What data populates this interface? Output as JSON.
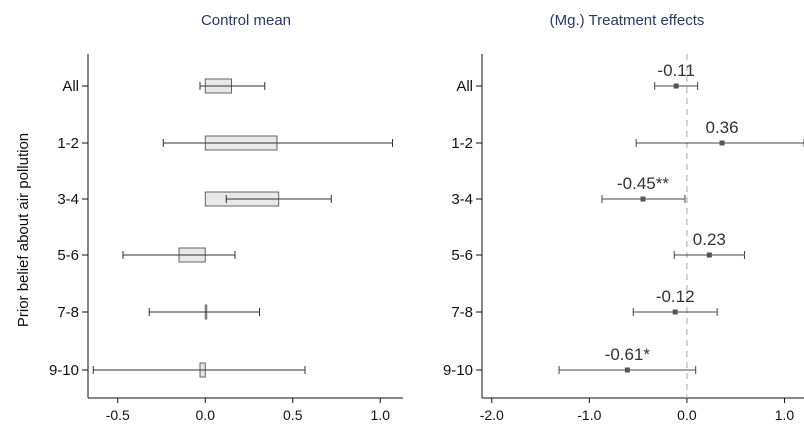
{
  "chart_data": [
    {
      "type": "bar",
      "title": "Control mean",
      "ylabel": "Prior belief about air pollution",
      "categories": [
        "All",
        "1-2",
        "3-4",
        "5-6",
        "7-8",
        "9-10"
      ],
      "values": [
        0.15,
        0.41,
        0.42,
        -0.15,
        0.0,
        -0.03
      ],
      "ci_low": [
        -0.03,
        -0.24,
        0.12,
        -0.47,
        -0.32,
        -0.64
      ],
      "ci_high": [
        0.34,
        1.07,
        0.72,
        0.17,
        0.31,
        0.57
      ],
      "xlim": [
        -0.67,
        1.13
      ],
      "xticks": [
        -0.5,
        0.0,
        0.5,
        1.0
      ],
      "xtick_labels": [
        "-0.5",
        "0.0",
        "0.5",
        "1.0"
      ],
      "grid": false
    },
    {
      "type": "scatter",
      "title": "(Mg.) Treatment effects",
      "categories": [
        "All",
        "1-2",
        "3-4",
        "5-6",
        "7-8",
        "9-10"
      ],
      "values": [
        -0.11,
        0.36,
        -0.45,
        0.23,
        -0.12,
        -0.61
      ],
      "labels": [
        "-0.11",
        "0.36",
        "-0.45**",
        "0.23",
        "-0.12",
        "-0.61*"
      ],
      "ci_low": [
        -0.33,
        -0.52,
        -0.87,
        -0.13,
        -0.55,
        -1.31
      ],
      "ci_high": [
        0.11,
        1.2,
        -0.02,
        0.59,
        0.31,
        0.09
      ],
      "xlim": [
        -2.1,
        1.2
      ],
      "xticks": [
        -2.0,
        -1.0,
        0.0,
        1.0
      ],
      "xtick_labels": [
        "-2.0",
        "-1.0",
        "0.0",
        "1.0"
      ],
      "reference_line": 0,
      "grid": false
    }
  ]
}
